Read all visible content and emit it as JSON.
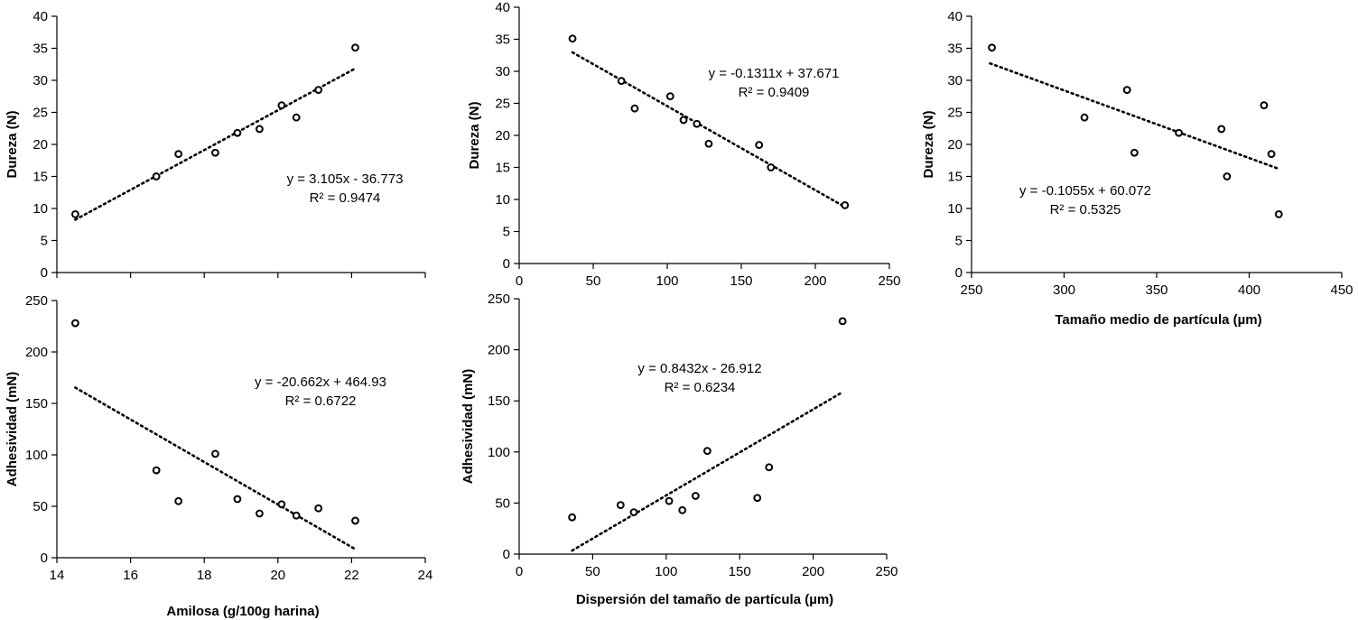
{
  "chart_data": [
    {
      "id": "amilosa_dureza",
      "type": "scatter",
      "xlabel": "",
      "ylabel": "Dureza (N)",
      "xlim": [
        14,
        24
      ],
      "ylim": [
        0,
        40
      ],
      "xticks": [],
      "yticks": [
        0,
        5,
        10,
        15,
        20,
        25,
        30,
        35,
        40
      ],
      "x_tick_marks": [
        14,
        16,
        18,
        20,
        22,
        24
      ],
      "points": [
        [
          14.5,
          9.1
        ],
        [
          16.7,
          15.0
        ],
        [
          17.3,
          18.5
        ],
        [
          18.3,
          18.7
        ],
        [
          18.9,
          21.8
        ],
        [
          19.5,
          22.4
        ],
        [
          20.1,
          26.1
        ],
        [
          20.5,
          24.2
        ],
        [
          21.1,
          28.5
        ],
        [
          22.1,
          35.1
        ]
      ],
      "trend": {
        "slope": 3.105,
        "intercept": -36.773,
        "x_range": [
          14.5,
          22.1
        ],
        "style": "dotted"
      },
      "equation": "y = 3.105x - 36.773",
      "r2": "R² = 0.9474",
      "grid": false
    },
    {
      "id": "dispersion_dureza",
      "type": "scatter",
      "xlabel": "",
      "ylabel": "Dureza (N)",
      "xlim": [
        0,
        250
      ],
      "ylim": [
        0,
        40
      ],
      "xticks": [
        0,
        50,
        100,
        150,
        200,
        250
      ],
      "yticks": [
        0,
        5,
        10,
        15,
        20,
        25,
        30,
        35,
        40
      ],
      "points": [
        [
          36,
          35.1
        ],
        [
          69,
          28.5
        ],
        [
          78,
          24.2
        ],
        [
          102,
          26.1
        ],
        [
          111,
          22.4
        ],
        [
          120,
          21.8
        ],
        [
          128,
          18.7
        ],
        [
          162,
          18.5
        ],
        [
          170,
          15.0
        ],
        [
          220,
          9.1
        ]
      ],
      "trend": {
        "slope": -0.1311,
        "intercept": 37.671,
        "x_range": [
          36,
          220
        ],
        "style": "dotted"
      },
      "equation": "y = -0.1311x + 37.671",
      "r2": "R² = 0.9409",
      "grid": false
    },
    {
      "id": "tamano_dureza",
      "type": "scatter",
      "xlabel": "Tamaño medio de partícula (µm)",
      "ylabel": "Dureza (N)",
      "xlim": [
        250,
        450
      ],
      "ylim": [
        0,
        40
      ],
      "xticks": [
        250,
        300,
        350,
        400,
        450
      ],
      "yticks": [
        0,
        5,
        10,
        15,
        20,
        25,
        30,
        35,
        40
      ],
      "points": [
        [
          261,
          35.1
        ],
        [
          311,
          24.2
        ],
        [
          334,
          28.5
        ],
        [
          338,
          18.7
        ],
        [
          362,
          21.8
        ],
        [
          385,
          22.4
        ],
        [
          388,
          15.0
        ],
        [
          408,
          26.1
        ],
        [
          412,
          18.5
        ],
        [
          416,
          9.1
        ]
      ],
      "trend": {
        "slope": -0.1055,
        "intercept": 60.072,
        "x_range": [
          260,
          415
        ],
        "style": "dotted"
      },
      "equation": "y = -0.1055x + 60.072",
      "r2": "R² = 0.5325",
      "grid": false
    },
    {
      "id": "amilosa_adhesividad",
      "type": "scatter",
      "xlabel": "Amilosa (g/100g harina)",
      "ylabel": "Adhesividad (mN)",
      "xlim": [
        14,
        24
      ],
      "ylim": [
        0,
        250
      ],
      "xticks": [
        14,
        16,
        18,
        20,
        22,
        24
      ],
      "yticks": [
        0,
        50,
        100,
        150,
        200,
        250
      ],
      "points": [
        [
          14.5,
          228
        ],
        [
          16.7,
          85
        ],
        [
          17.3,
          55
        ],
        [
          18.3,
          101
        ],
        [
          18.9,
          57
        ],
        [
          19.5,
          43
        ],
        [
          20.1,
          52
        ],
        [
          20.5,
          41
        ],
        [
          21.1,
          48
        ],
        [
          22.1,
          36
        ]
      ],
      "trend": {
        "slope": -20.662,
        "intercept": 464.93,
        "x_range": [
          14.5,
          22.1
        ],
        "style": "dotted"
      },
      "equation": "y = -20.662x + 464.93",
      "r2": "R² = 0.6722",
      "grid": false
    },
    {
      "id": "dispersion_adhesividad",
      "type": "scatter",
      "xlabel": "Dispersión del tamaño de partícula (µm)",
      "ylabel": "Adhesividad (mN)",
      "xlim": [
        0,
        250
      ],
      "ylim": [
        0,
        250
      ],
      "xticks": [
        0,
        50,
        100,
        150,
        200,
        250
      ],
      "yticks": [
        0,
        50,
        100,
        150,
        200,
        250
      ],
      "points": [
        [
          36,
          36
        ],
        [
          69,
          48
        ],
        [
          78,
          41
        ],
        [
          102,
          52
        ],
        [
          111,
          43
        ],
        [
          120,
          57
        ],
        [
          128,
          101
        ],
        [
          162,
          55
        ],
        [
          170,
          85
        ],
        [
          220,
          228
        ]
      ],
      "trend": {
        "slope": 0.8432,
        "intercept": -26.912,
        "x_range": [
          36,
          220
        ],
        "style": "dotted"
      },
      "equation": "y = 0.8432x - 26.912",
      "r2": "R² = 0.6234",
      "grid": false
    }
  ]
}
